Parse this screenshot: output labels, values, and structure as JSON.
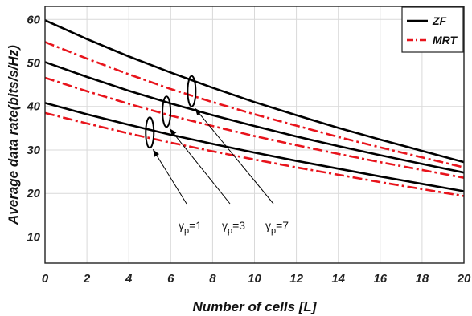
{
  "chart_data": {
    "type": "line",
    "xlabel": "Number of cells [L]",
    "ylabel": "Average data rate(bits/s/Hz)",
    "xlim": [
      0,
      20
    ],
    "ylim": [
      4,
      63
    ],
    "xticks": [
      0,
      2,
      4,
      6,
      8,
      10,
      12,
      14,
      16,
      18,
      20
    ],
    "yticks": [
      10,
      20,
      30,
      40,
      50,
      60
    ],
    "grid": true,
    "legend_position": "top-right",
    "legend": [
      {
        "label": "ZF",
        "color": "#000000",
        "dash": "solid"
      },
      {
        "label": "MRT",
        "color": "#e8141c",
        "dash": "dashdot"
      }
    ],
    "x": [
      0,
      2,
      4,
      6,
      8,
      10,
      12,
      14,
      16,
      18,
      20
    ],
    "series": [
      {
        "group": "ZF",
        "gamma": "7",
        "color": "#000000",
        "dash": "solid",
        "values": [
          59.8,
          55.5,
          51.5,
          47.8,
          44.3,
          41.0,
          38.0,
          35.1,
          32.4,
          29.8,
          27.2
        ]
      },
      {
        "group": "MRT",
        "gamma": "7",
        "color": "#e8141c",
        "dash": "dashdot",
        "values": [
          54.8,
          51.0,
          47.4,
          44.0,
          41.0,
          38.2,
          35.6,
          33.0,
          30.6,
          28.3,
          26.0
        ]
      },
      {
        "group": "ZF",
        "gamma": "3",
        "color": "#000000",
        "dash": "solid",
        "values": [
          50.2,
          46.8,
          43.6,
          40.7,
          38.0,
          35.5,
          33.1,
          30.9,
          28.8,
          26.8,
          24.8
        ]
      },
      {
        "group": "MRT",
        "gamma": "3",
        "color": "#e8141c",
        "dash": "dashdot",
        "values": [
          46.6,
          43.5,
          40.6,
          37.9,
          35.5,
          33.2,
          31.1,
          29.1,
          27.2,
          25.4,
          23.6
        ]
      },
      {
        "group": "ZF",
        "gamma": "1",
        "color": "#000000",
        "dash": "solid",
        "values": [
          40.8,
          38.2,
          35.8,
          33.5,
          31.4,
          29.4,
          27.5,
          25.7,
          23.9,
          22.2,
          20.5
        ]
      },
      {
        "group": "MRT",
        "gamma": "1",
        "color": "#e8141c",
        "dash": "dashdot",
        "values": [
          38.5,
          36.1,
          33.8,
          31.7,
          29.7,
          27.8,
          26.0,
          24.3,
          22.6,
          21.0,
          19.4
        ]
      }
    ],
    "annotations": [
      {
        "gamma_symbol": "γ",
        "subscript": "p",
        "suffix": "=1",
        "ellipse_x": 5.0,
        "ellipse_y": 34.0
      },
      {
        "gamma_symbol": "γ",
        "subscript": "p",
        "suffix": "=3",
        "ellipse_x": 5.8,
        "ellipse_y": 38.8
      },
      {
        "gamma_symbol": "γ",
        "subscript": "p",
        "suffix": "=7",
        "ellipse_x": 7.0,
        "ellipse_y": 43.5
      }
    ]
  }
}
